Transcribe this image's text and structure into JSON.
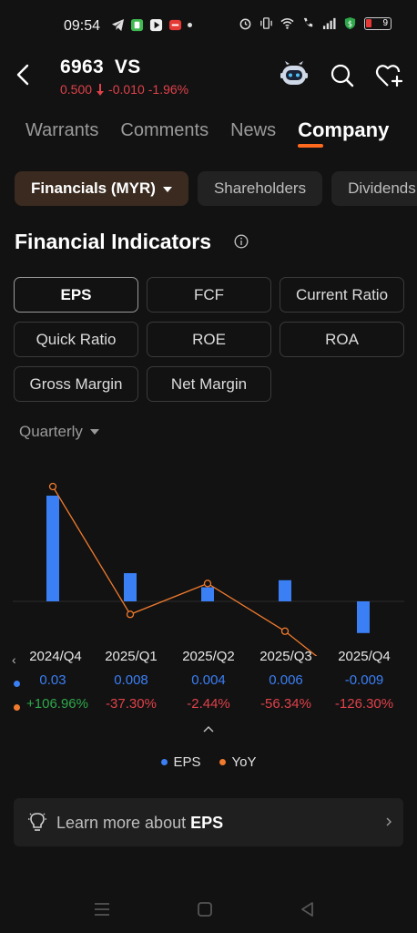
{
  "status": {
    "time": "09:54",
    "battery": "9"
  },
  "header": {
    "code": "6963",
    "name": "VS",
    "price": "0.500",
    "change": "-0.010",
    "change_pct": "-1.96%"
  },
  "tabs": [
    {
      "label": "Warrants"
    },
    {
      "label": "Comments"
    },
    {
      "label": "News"
    },
    {
      "label": "Company"
    }
  ],
  "subtabs": [
    {
      "label": "Financials (MYR)"
    },
    {
      "label": "Shareholders"
    },
    {
      "label": "Dividends"
    }
  ],
  "section_title": "Financial Indicators",
  "indicators": [
    {
      "label": "EPS"
    },
    {
      "label": "FCF"
    },
    {
      "label": "Current Ratio"
    },
    {
      "label": "Quick Ratio"
    },
    {
      "label": "ROE"
    },
    {
      "label": "ROA"
    },
    {
      "label": "Gross Margin"
    },
    {
      "label": "Net Margin"
    }
  ],
  "period": "Quarterly",
  "chart_data": {
    "type": "bar",
    "categories": [
      "2024/Q4",
      "2025/Q1",
      "2025/Q2",
      "2025/Q3",
      "2025/Q4"
    ],
    "series": [
      {
        "name": "EPS",
        "type": "bar",
        "values": [
          0.03,
          0.008,
          0.004,
          0.006,
          -0.009
        ],
        "labels": [
          "0.03",
          "0.008",
          "0.004",
          "0.006",
          "-0.009"
        ]
      },
      {
        "name": "YoY",
        "type": "line",
        "values": [
          106.96,
          -37.3,
          -2.44,
          -56.34,
          -126.3
        ],
        "labels": [
          "+106.96%",
          "-37.30%",
          "-2.44%",
          "-56.34%",
          "-126.30%"
        ]
      }
    ],
    "colors": {
      "EPS": "#3b7ff5",
      "YoY": "#f07a2e"
    }
  },
  "learn": {
    "prefix": "Learn more about",
    "term": "EPS"
  },
  "colors": {
    "accent": "#ff6a1f",
    "down": "#e0414a",
    "up": "#2ea84a",
    "eps": "#3b7ff5",
    "yoy": "#f07a2e"
  }
}
